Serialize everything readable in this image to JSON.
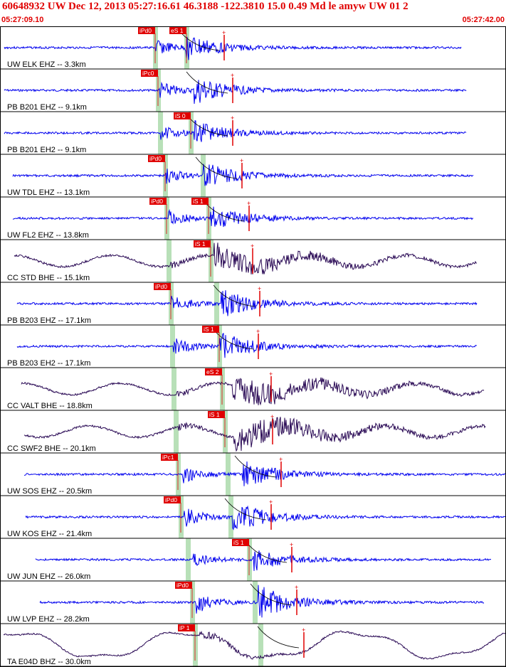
{
  "header": {
    "title": "60648932 UW Dec 12, 2013 05:27:16.61    46.3188 -122.3810 15.0 0.49 Md le amyw UW 01    2",
    "time_start": "05:27:09.10",
    "time_end": "05:27:42.00"
  },
  "colors": {
    "title": "#e00000",
    "trace_short_period": "#0000ee",
    "trace_broadband": "#2a0a55",
    "pick_label_bg": "#e00000",
    "pick_window": "#b8e0b8",
    "pick_marker": "#e00000",
    "theoretical_curve": "#000000"
  },
  "panels": [
    {
      "label": "UW ELK EHZ -- 3.3km",
      "picks": [
        "iPd0",
        "eS 1"
      ],
      "kind": "sp",
      "amp": 16,
      "seed": 3,
      "start": 6,
      "end": 648,
      "p": 218,
      "s": 260,
      "pw": 218,
      "sw": 262
    },
    {
      "label": "PB B201 EHZ -- 9.1km",
      "picks": [
        "iPc0"
      ],
      "kind": "sp",
      "amp": 18,
      "seed": 7,
      "start": 6,
      "end": 655,
      "p": 223,
      "s": 272,
      "pw": 222,
      "sw": null
    },
    {
      "label": "PB B201 EH2 -- 9.1km",
      "picks": [
        "iS 0"
      ],
      "kind": "sp",
      "amp": 14,
      "seed": 11,
      "start": 6,
      "end": 655,
      "p": 225,
      "s": 272,
      "pw": 225,
      "sw": 268
    },
    {
      "label": "UW TDL EHZ -- 13.1km",
      "picks": [
        "iPd0"
      ],
      "kind": "sp",
      "amp": 16,
      "seed": 17,
      "start": 18,
      "end": 665,
      "p": 232,
      "s": 285,
      "pw": 232,
      "sw": 285
    },
    {
      "label": "UW FL2 EHZ -- 13.8km",
      "picks": [
        "iPd0",
        "iS 1"
      ],
      "kind": "sp",
      "amp": 16,
      "seed": 23,
      "start": 18,
      "end": 665,
      "p": 236,
      "s": 295,
      "pw": 234,
      "sw": 293
    },
    {
      "label": "CC STD BHE -- 15.1km",
      "picks": [
        "iS 1"
      ],
      "kind": "bb",
      "amp": 18,
      "seed": 29,
      "start": 20,
      "end": 670,
      "p": 238,
      "s": 300,
      "pw": 237,
      "sw": 296
    },
    {
      "label": "PB B203 EHZ -- 17.1km",
      "picks": [
        "iPd0"
      ],
      "kind": "sp",
      "amp": 18,
      "seed": 31,
      "start": 24,
      "end": 670,
      "p": 240,
      "s": 310,
      "pw": 240,
      "sw": 304
    },
    {
      "label": "PB B203 EH2 -- 17.1km",
      "picks": [
        "iS 1"
      ],
      "kind": "sp",
      "amp": 18,
      "seed": 37,
      "start": 24,
      "end": 670,
      "p": 243,
      "s": 308,
      "pw": 242,
      "sw": 308
    },
    {
      "label": "CC VALT BHE -- 18.8km",
      "picks": [
        "eS 2"
      ],
      "kind": "bb",
      "amp": 22,
      "seed": 41,
      "start": 30,
      "end": 680,
      "p": 248,
      "s": 326,
      "pw": 244,
      "sw": 312
    },
    {
      "label": "CC SWF2 BHE -- 20.1km",
      "picks": [
        "iS 1"
      ],
      "kind": "bb",
      "amp": 22,
      "seed": 43,
      "start": 34,
      "end": 682,
      "p": 250,
      "s": 328,
      "pw": 247,
      "sw": 316
    },
    {
      "label": "UW SOS EHZ -- 20.5km",
      "picks": [
        "iPc1"
      ],
      "kind": "sp",
      "amp": 18,
      "seed": 47,
      "start": 34,
      "end": 711,
      "p": 256,
      "s": 340,
      "pw": 250,
      "sw": 320
    },
    {
      "label": "UW KOS EHZ -- 21.4km",
      "picks": [
        "iPd0"
      ],
      "kind": "sp",
      "amp": 20,
      "seed": 53,
      "start": 36,
      "end": 711,
      "p": 258,
      "s": 326,
      "pw": 254,
      "sw": 324
    },
    {
      "label": "UW JUN EHZ -- 26.0km",
      "picks": [
        "iS 1"
      ],
      "kind": "sp",
      "amp": 14,
      "seed": 59,
      "start": 50,
      "end": 690,
      "p": 270,
      "s": 355,
      "pw": 264,
      "sw": 350
    },
    {
      "label": "UW LVP EHZ -- 28.2km",
      "picks": [
        "iPd0"
      ],
      "kind": "sp",
      "amp": 22,
      "seed": 61,
      "start": 56,
      "end": 680,
      "p": 275,
      "s": 362,
      "pw": 270,
      "sw": 358
    },
    {
      "label": "TA E04D BHZ -- 30.0km",
      "picks": [
        "iP 1"
      ],
      "kind": "lp",
      "amp": 22,
      "seed": 67,
      "start": 5,
      "end": 711,
      "p": 279,
      "s": 372,
      "pw": 274,
      "sw": 366
    }
  ]
}
